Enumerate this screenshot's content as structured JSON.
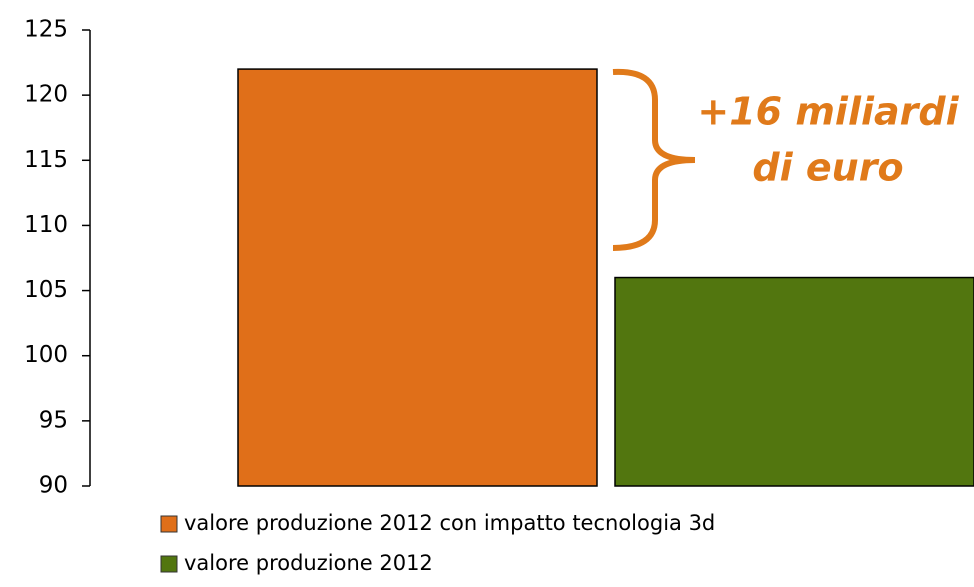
{
  "chart_data": {
    "type": "bar",
    "categories": [
      null
    ],
    "series": [
      {
        "name": "valore produzione 2012 con impatto tecnologia 3d",
        "color": "#e06f19",
        "values": [
          122
        ]
      },
      {
        "name": "valore produzione 2012",
        "color": "#52760f",
        "values": [
          106
        ]
      }
    ],
    "ylim": [
      90,
      125
    ],
    "yticks": [
      90,
      95,
      100,
      105,
      110,
      115,
      120,
      125
    ],
    "annotation": [
      "+16 miliardi",
      "di euro"
    ]
  }
}
